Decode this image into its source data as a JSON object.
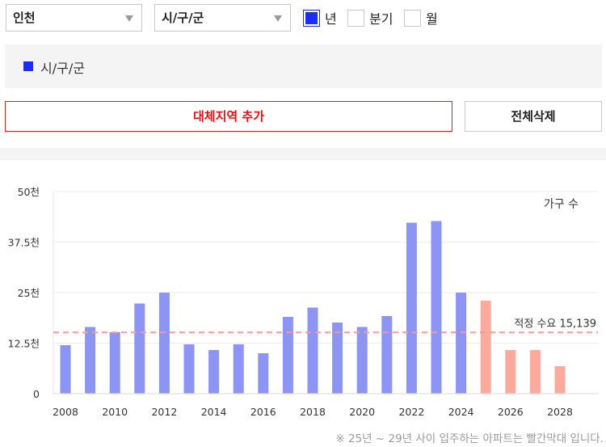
{
  "filters": {
    "region": "인천",
    "district": "시/구/군",
    "periods": [
      {
        "label": "년",
        "checked": true
      },
      {
        "label": "분기",
        "checked": false
      },
      {
        "label": "월",
        "checked": false
      }
    ]
  },
  "legend": {
    "label": "시/구/군",
    "color": "#1c2ef5"
  },
  "buttons": {
    "add_region": "대체지역 추가",
    "clear_all": "전체삭제"
  },
  "chart_data": {
    "type": "bar",
    "unit_label": "가구 수",
    "ylim": [
      0,
      50000
    ],
    "y_ticks": [
      {
        "value": 0,
        "label": "0"
      },
      {
        "value": 12500,
        "label": "12.5천"
      },
      {
        "value": 25000,
        "label": "25천"
      },
      {
        "value": 37500,
        "label": "37.5천"
      },
      {
        "value": 50000,
        "label": "50천"
      }
    ],
    "x_tick_labels": [
      "2008",
      "2010",
      "2012",
      "2014",
      "2016",
      "2018",
      "2020",
      "2022",
      "2024",
      "2026",
      "2028"
    ],
    "categories": [
      "2008",
      "2009",
      "2010",
      "2011",
      "2012",
      "2013",
      "2014",
      "2015",
      "2016",
      "2017",
      "2018",
      "2019",
      "2020",
      "2021",
      "2022",
      "2023",
      "2024",
      "2025",
      "2026",
      "2027",
      "2028"
    ],
    "values": [
      12000,
      16500,
      15200,
      22300,
      25000,
      12200,
      10800,
      12200,
      10000,
      19000,
      21300,
      17600,
      16500,
      19200,
      42300,
      42700,
      25000,
      23000,
      10800,
      10800,
      6800
    ],
    "planned_start_index": 17,
    "colors": {
      "actual": "#8c95f4",
      "planned": "#fbaa9c",
      "reference": "#f59a9a"
    },
    "reference": {
      "value": 15139,
      "label": "적정 수요 15,139"
    },
    "grid": true
  },
  "footnote": "※ 25년 ~ 29년 사이 입주하는 아파트는 빨간막대 입니다."
}
